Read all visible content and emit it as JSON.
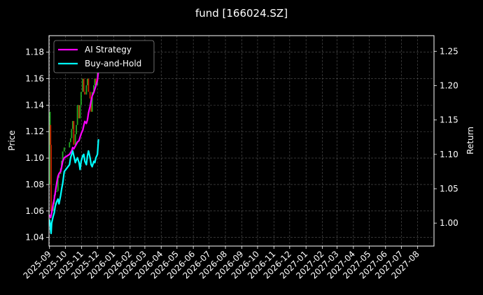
{
  "chart_data": {
    "type": "line",
    "title": "fund [166024.SZ]",
    "ylabel": "Price",
    "y2label": "Return",
    "xlim": [
      "2025-08-31",
      "2027-09-01"
    ],
    "ylim": [
      1.0335,
      1.1925
    ],
    "y2lim": [
      0.9666,
      1.2727
    ],
    "grid": true,
    "legend_position": "upper-left",
    "x_ticks": [
      "2025-09",
      "2025-10",
      "2025-11",
      "2025-12",
      "2026-01",
      "2026-02",
      "2026-03",
      "2026-04",
      "2026-05",
      "2026-06",
      "2026-07",
      "2026-08",
      "2026-09",
      "2026-10",
      "2026-11",
      "2026-12",
      "2027-01",
      "2027-02",
      "2027-03",
      "2027-04",
      "2027-05",
      "2027-06",
      "2027-07",
      "2027-08"
    ],
    "y_ticks": [
      1.04,
      1.06,
      1.08,
      1.1,
      1.12,
      1.14,
      1.16,
      1.18
    ],
    "y2_ticks": [
      1.0,
      1.05,
      1.1,
      1.15,
      1.2,
      1.25
    ],
    "series": [
      {
        "name": "AI Strategy",
        "axis": "right",
        "color": "#ff00ff",
        "x": [
          "2025-09-01",
          "2025-09-03",
          "2025-09-05",
          "2025-09-08",
          "2025-09-10",
          "2025-09-12",
          "2025-09-15",
          "2025-09-17",
          "2025-09-19",
          "2025-09-22",
          "2025-09-24",
          "2025-09-26",
          "2025-09-29",
          "2025-10-09",
          "2025-10-13",
          "2025-10-15",
          "2025-10-17",
          "2025-10-20",
          "2025-10-22",
          "2025-10-24",
          "2025-10-27",
          "2025-10-29",
          "2025-10-31",
          "2025-11-03",
          "2025-11-05",
          "2025-11-07",
          "2025-11-10",
          "2025-11-12",
          "2025-11-14",
          "2025-11-17",
          "2025-11-19",
          "2025-11-21",
          "2025-11-24",
          "2025-11-26",
          "2025-11-28",
          "2025-12-01",
          "2025-12-03"
        ],
        "values": [
          1.012,
          1.008,
          1.015,
          1.028,
          1.035,
          1.045,
          1.06,
          1.068,
          1.072,
          1.075,
          1.082,
          1.09,
          1.095,
          1.1,
          1.105,
          1.11,
          1.108,
          1.112,
          1.115,
          1.118,
          1.12,
          1.125,
          1.13,
          1.135,
          1.142,
          1.148,
          1.145,
          1.15,
          1.16,
          1.17,
          1.178,
          1.185,
          1.19,
          1.195,
          1.2,
          1.208,
          1.222
        ]
      },
      {
        "name": "Buy-and-Hold",
        "axis": "right",
        "color": "#00ffff",
        "x": [
          "2025-09-01",
          "2025-09-02",
          "2025-09-03",
          "2025-09-04",
          "2025-09-05",
          "2025-09-08",
          "2025-09-10",
          "2025-09-12",
          "2025-09-15",
          "2025-09-17",
          "2025-09-19",
          "2025-09-22",
          "2025-09-24",
          "2025-09-26",
          "2025-09-29",
          "2025-10-09",
          "2025-10-11",
          "2025-10-13",
          "2025-10-15",
          "2025-10-17",
          "2025-10-20",
          "2025-10-22",
          "2025-10-24",
          "2025-10-27",
          "2025-10-29",
          "2025-10-31",
          "2025-11-03",
          "2025-11-05",
          "2025-11-07",
          "2025-11-10",
          "2025-11-12",
          "2025-11-14",
          "2025-11-17",
          "2025-11-19",
          "2025-11-21",
          "2025-11-24",
          "2025-11-26",
          "2025-11-28",
          "2025-12-01",
          "2025-12-03"
        ],
        "values": [
          1.005,
          1.0,
          0.99,
          0.985,
          1.0,
          1.01,
          1.015,
          1.025,
          1.032,
          1.035,
          1.028,
          1.04,
          1.05,
          1.058,
          1.075,
          1.085,
          1.095,
          1.1,
          1.105,
          1.098,
          1.088,
          1.092,
          1.095,
          1.088,
          1.078,
          1.09,
          1.098,
          1.1,
          1.09,
          1.085,
          1.098,
          1.105,
          1.095,
          1.085,
          1.082,
          1.09,
          1.088,
          1.095,
          1.1,
          1.122
        ]
      }
    ],
    "candles": {
      "x": [
        "2025-09-01",
        "2025-09-02",
        "2025-09-03",
        "2025-09-04",
        "2025-09-05",
        "2025-09-08",
        "2025-09-10",
        "2025-09-12",
        "2025-09-15",
        "2025-09-17",
        "2025-09-19",
        "2025-09-22",
        "2025-09-24",
        "2025-09-26",
        "2025-09-29",
        "2025-10-09",
        "2025-10-11",
        "2025-10-13",
        "2025-10-15",
        "2025-10-17",
        "2025-10-20",
        "2025-10-22",
        "2025-10-24",
        "2025-10-27",
        "2025-10-29",
        "2025-10-31",
        "2025-11-03",
        "2025-11-05",
        "2025-11-07",
        "2025-11-10",
        "2025-11-12",
        "2025-11-14",
        "2025-11-17",
        "2025-11-19",
        "2025-11-21",
        "2025-11-24",
        "2025-11-26",
        "2025-11-28",
        "2025-12-01",
        "2025-12-03"
      ],
      "open": [
        1.08,
        1.12,
        1.125,
        1.11,
        1.06,
        1.06,
        1.065,
        1.072,
        1.075,
        1.075,
        1.085,
        1.088,
        1.092,
        1.098,
        1.105,
        1.108,
        1.112,
        1.115,
        1.122,
        1.128,
        1.11,
        1.118,
        1.125,
        1.14,
        1.13,
        1.14,
        1.15,
        1.16,
        1.15,
        1.148,
        1.155,
        1.16,
        1.15,
        1.145,
        1.135,
        1.15,
        1.155,
        1.16,
        1.155,
        1.17
      ],
      "close": [
        1.12,
        1.135,
        1.11,
        1.06,
        1.06,
        1.065,
        1.072,
        1.075,
        1.075,
        1.085,
        1.088,
        1.092,
        1.098,
        1.105,
        1.108,
        1.112,
        1.115,
        1.122,
        1.128,
        1.11,
        1.118,
        1.125,
        1.14,
        1.13,
        1.14,
        1.15,
        1.16,
        1.15,
        1.148,
        1.155,
        1.16,
        1.15,
        1.145,
        1.135,
        1.15,
        1.155,
        1.16,
        1.155,
        1.17,
        1.178
      ]
    }
  }
}
